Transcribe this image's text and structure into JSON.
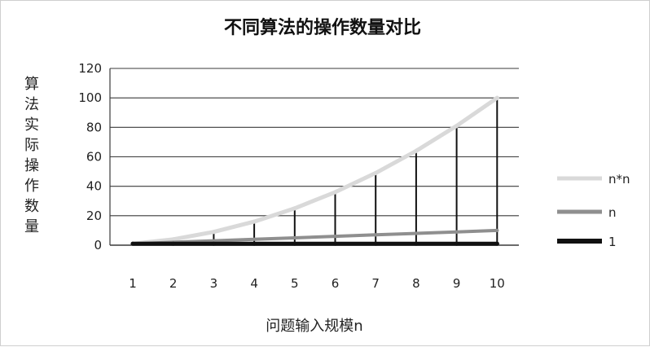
{
  "chart_data": {
    "type": "line",
    "title": "不同算法的操作数量对比",
    "xlabel": "问题输入规模n",
    "ylabel": "算法实际操作数量",
    "x": [
      1,
      2,
      3,
      4,
      5,
      6,
      7,
      8,
      9,
      10
    ],
    "categories": [
      "1",
      "2",
      "3",
      "4",
      "5",
      "6",
      "7",
      "8",
      "9",
      "10"
    ],
    "ylim": [
      0,
      120
    ],
    "yticks": [
      "0",
      "20",
      "40",
      "60",
      "80",
      "100",
      "120"
    ],
    "grid": true,
    "legend_position": "right",
    "drop_lines": true,
    "series": [
      {
        "name": "n*n",
        "values": [
          1,
          4,
          9,
          16,
          25,
          36,
          49,
          64,
          81,
          100
        ],
        "color": "#d9d9d9"
      },
      {
        "name": "n",
        "values": [
          1,
          2,
          3,
          4,
          5,
          6,
          7,
          8,
          9,
          10
        ],
        "color": "#8f8f8f"
      },
      {
        "name": "1",
        "values": [
          1,
          1,
          1,
          1,
          1,
          1,
          1,
          1,
          1,
          1
        ],
        "color": "#111111"
      }
    ]
  }
}
